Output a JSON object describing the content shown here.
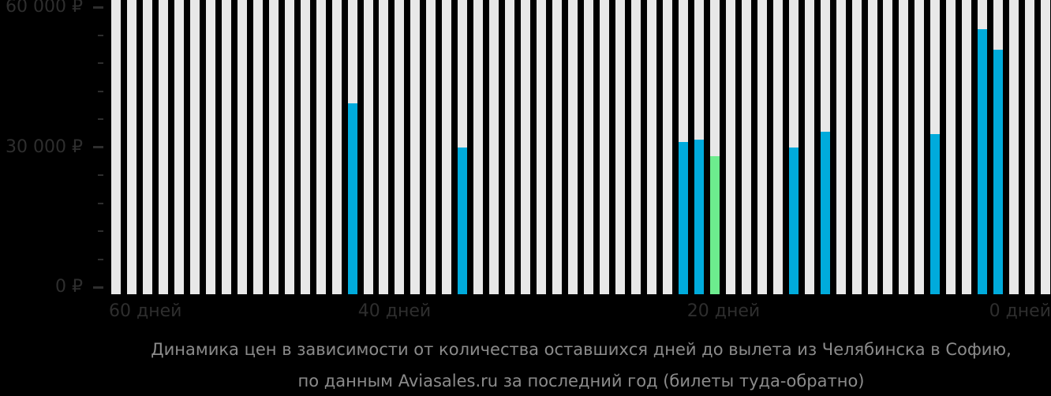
{
  "chart_data": {
    "type": "bar",
    "title": "Динамика цен в зависимости от количества оставшихся дней до вылета из Челябинска в Софию,",
    "subtitle": "по данным Aviasales.ru за последний год (билеты туда-обратно)",
    "x_axis": {
      "tick_labels": [
        "60 дней",
        "40 дней",
        "20 дней",
        "0 дней"
      ],
      "days_from": 60,
      "days_to": 1,
      "num_slots": 60
    },
    "y_axis": {
      "min": 0,
      "max": 60000,
      "major_ticks": [
        {
          "value": 60000,
          "label": "60 000 ₽"
        },
        {
          "value": 30000,
          "label": "30 000 ₽"
        },
        {
          "value": 0,
          "label": "0 ₽"
        }
      ],
      "minor_tick_step": 6000
    },
    "points": [
      {
        "days_before_departure": 45,
        "price_rub": 39400,
        "lowest": false
      },
      {
        "days_before_departure": 38,
        "price_rub": 30000,
        "lowest": false
      },
      {
        "days_before_departure": 24,
        "price_rub": 31200,
        "lowest": false
      },
      {
        "days_before_departure": 23,
        "price_rub": 31700,
        "lowest": false
      },
      {
        "days_before_departure": 22,
        "price_rub": 28100,
        "lowest": true
      },
      {
        "days_before_departure": 17,
        "price_rub": 29900,
        "lowest": false
      },
      {
        "days_before_departure": 15,
        "price_rub": 33400,
        "lowest": false
      },
      {
        "days_before_departure": 8,
        "price_rub": 32900,
        "lowest": false
      },
      {
        "days_before_departure": 5,
        "price_rub": 55400,
        "lowest": false
      },
      {
        "days_before_departure": 4,
        "price_rub": 51000,
        "lowest": false
      }
    ],
    "colors": {
      "background": "#000000",
      "empty_day_bar": "#e8e8e8",
      "price_bar": "#00abdc",
      "lowest_price_bar": "#6dec8e",
      "axis_text": "#2e2e2e",
      "caption_text": "#8b8b8b"
    },
    "legend": null,
    "grid": false
  }
}
